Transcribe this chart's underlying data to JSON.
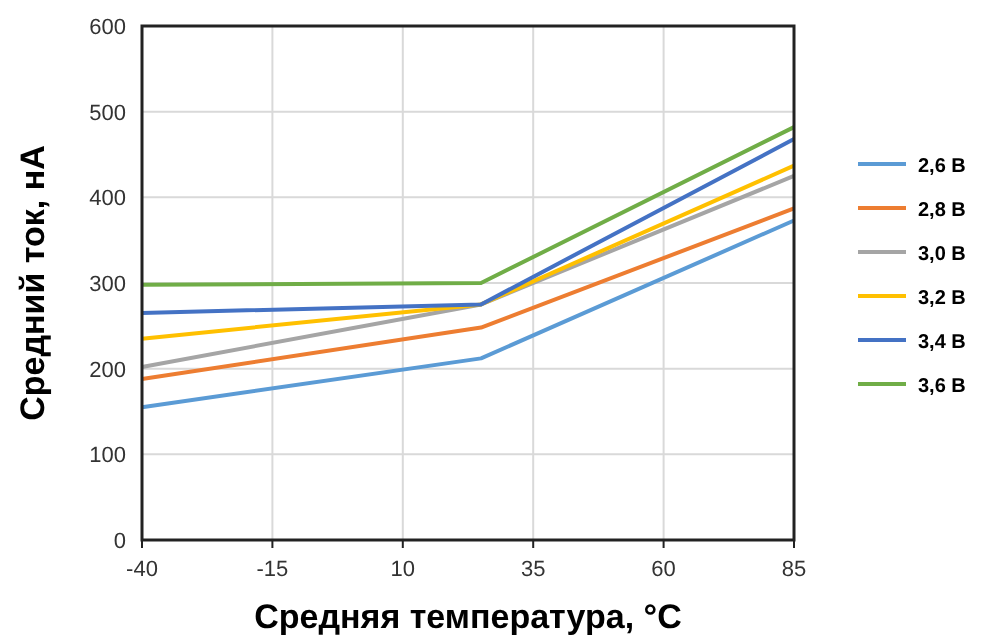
{
  "chart_data": {
    "type": "line",
    "xlabel": "Средняя температура, °C",
    "ylabel": "Средний ток, нА",
    "xlim": [
      -40,
      85
    ],
    "xticks": [
      -40,
      -15,
      10,
      35,
      60,
      85
    ],
    "ylim": [
      0,
      600
    ],
    "yticks": [
      0,
      100,
      200,
      300,
      400,
      500,
      600
    ],
    "grid": true,
    "legend": "right",
    "marker": "none",
    "line_style": "solid",
    "series": [
      {
        "name": "2,6 В",
        "color": "#5b9bd5",
        "x": [
          -40,
          25,
          85
        ],
        "values": [
          155,
          212,
          373
        ]
      },
      {
        "name": "2,8 В",
        "color": "#ed7d31",
        "x": [
          -40,
          25,
          85
        ],
        "values": [
          188,
          248,
          387
        ]
      },
      {
        "name": "3,0 В",
        "color": "#a5a5a5",
        "x": [
          -40,
          25,
          85
        ],
        "values": [
          202,
          275,
          425
        ]
      },
      {
        "name": "3,2 В",
        "color": "#ffc000",
        "x": [
          -40,
          25,
          85
        ],
        "values": [
          235,
          275,
          437
        ]
      },
      {
        "name": "3,4 В",
        "color": "#4472c4",
        "x": [
          -40,
          25,
          85
        ],
        "values": [
          265,
          275,
          468
        ]
      },
      {
        "name": "3,6 В",
        "color": "#70ad47",
        "x": [
          -40,
          25,
          85
        ],
        "values": [
          298,
          300,
          482
        ]
      }
    ]
  }
}
